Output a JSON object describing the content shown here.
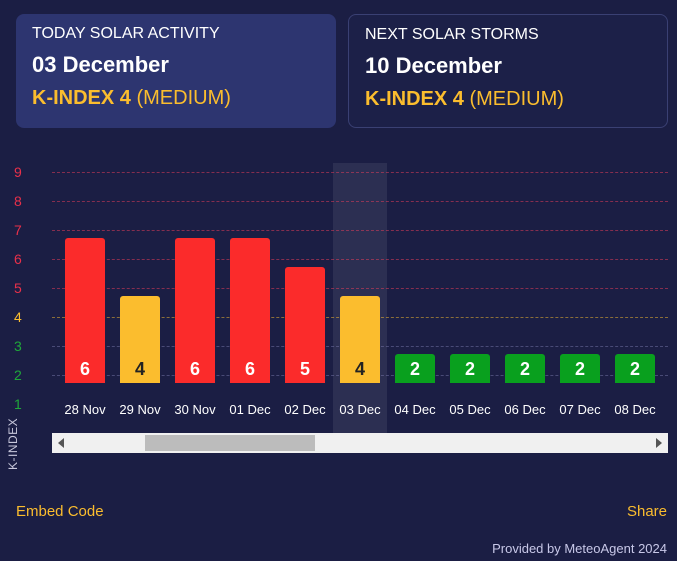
{
  "today": {
    "title": "TODAY SOLAR ACTIVITY",
    "date": "03 December",
    "kindex_label": "K-INDEX 4",
    "level": "(MEDIUM)"
  },
  "next": {
    "title": "NEXT SOLAR STORMS",
    "date": "10 December",
    "kindex_label": "K-INDEX 4",
    "level": "(MEDIUM)"
  },
  "colors": {
    "high": "#fb2b2b",
    "medium": "#fbbd2e",
    "low": "#09a01e",
    "background": "#1b1e44"
  },
  "chart_data": {
    "type": "bar",
    "ylabel": "K-INDEX",
    "ylim": [
      1,
      9
    ],
    "yticks": [
      "1",
      "2",
      "3",
      "4",
      "5",
      "6",
      "7",
      "8",
      "9"
    ],
    "categories": [
      "28 Nov",
      "29 Nov",
      "30 Nov",
      "01 Dec",
      "02 Dec",
      "03 Dec",
      "04 Dec",
      "05 Dec",
      "06 Dec",
      "07 Dec",
      "08 Dec"
    ],
    "values": [
      6,
      4,
      6,
      6,
      5,
      4,
      2,
      2,
      2,
      2,
      2
    ],
    "highlighted": "03 Dec",
    "grid": true
  },
  "footer": {
    "embed": "Embed Code",
    "share": "Share",
    "provided": "Provided by MeteoAgent 2024"
  }
}
